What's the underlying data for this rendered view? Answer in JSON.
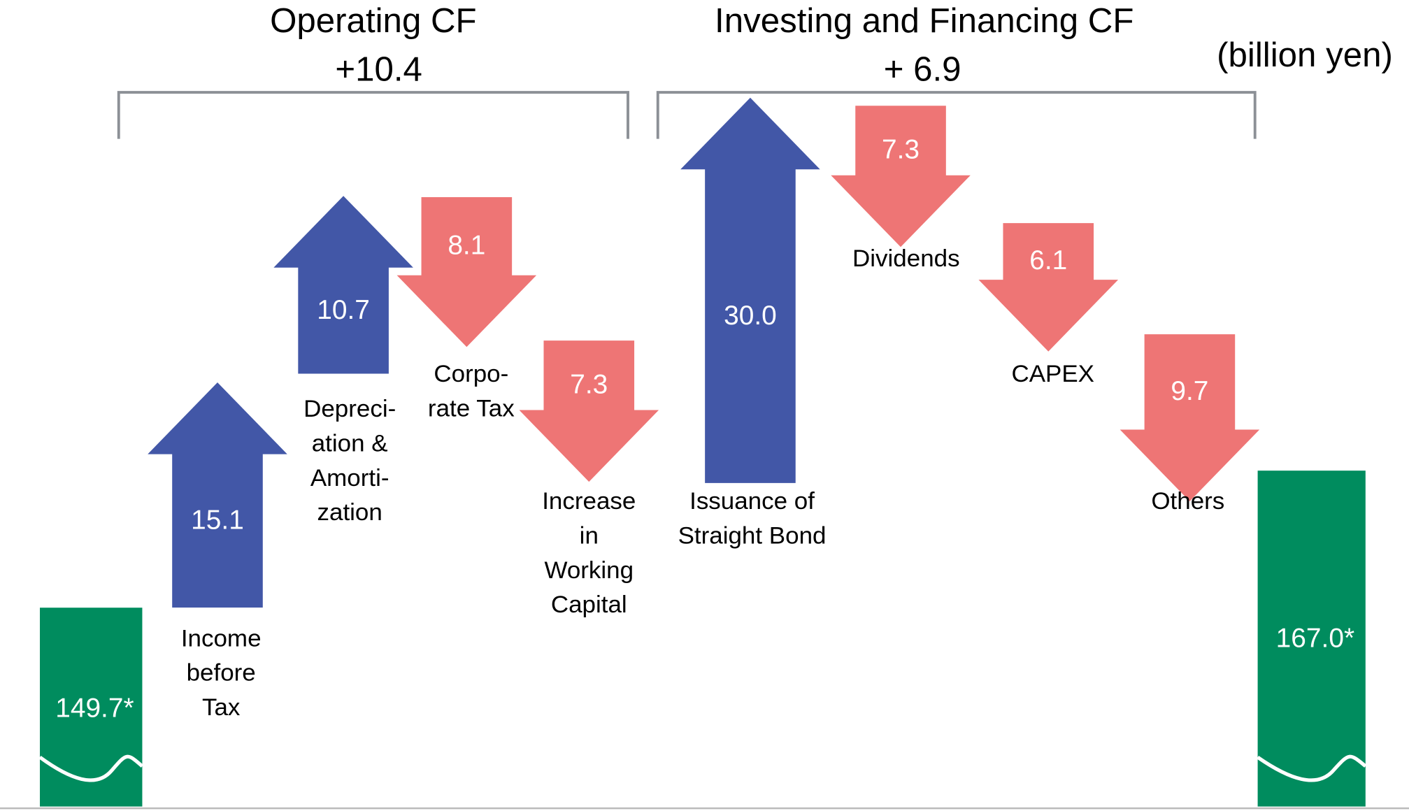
{
  "chart_data": {
    "type": "waterfall",
    "unit_label": "(billion yen)",
    "groups": [
      {
        "title": "Operating CF",
        "total_label": "+10.4"
      },
      {
        "title": "Investing and Financing CF",
        "total_label": "+ 6.9"
      }
    ],
    "start": {
      "value": 149.7,
      "value_label": "149.7*"
    },
    "end": {
      "value": 167.0,
      "value_label": "167.0*"
    },
    "categories": [
      [
        "Income",
        "before",
        "Tax"
      ],
      [
        "Depreci-",
        "ation &",
        "Amorti-",
        "zation"
      ],
      [
        "Corpo-",
        "rate Tax"
      ],
      [
        "Increase",
        "in",
        "Working",
        "Capital"
      ],
      [
        "Issuance of",
        "Straight Bond"
      ],
      [
        "Dividends"
      ],
      [
        "CAPEX"
      ],
      [
        "Others"
      ]
    ],
    "values": [
      15.1,
      10.7,
      -8.1,
      -7.3,
      30.0,
      -7.3,
      -6.1,
      -9.7
    ],
    "value_labels": [
      "15.1",
      "10.7",
      "8.1",
      "7.3",
      "30.0",
      "7.3",
      "6.1",
      "9.7"
    ],
    "increase_color": "#4257a7",
    "decrease_color": "#ee7575",
    "total_color": "#008c5e"
  }
}
